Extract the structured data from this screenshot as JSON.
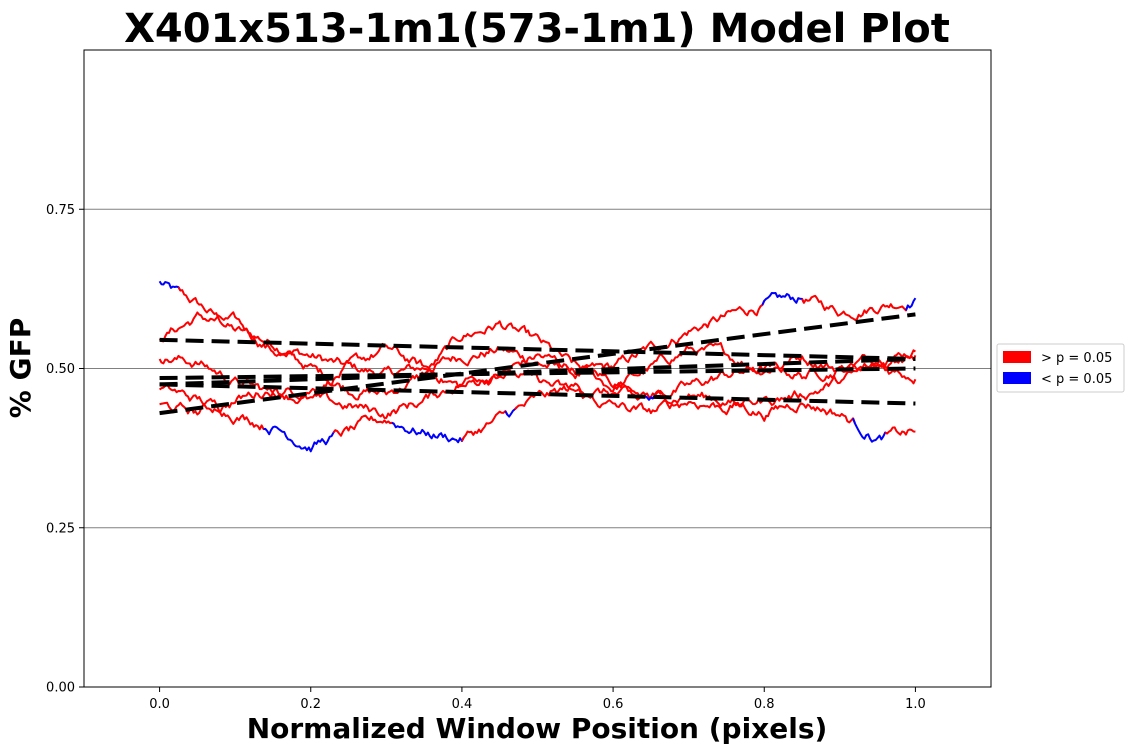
{
  "chart_data": {
    "type": "line",
    "title": "X401x513-1m1(573-1m1) Model Plot",
    "xlabel": "Normalized Window Position (pixels)",
    "ylabel": "% GFP",
    "xlim": [
      -0.1,
      1.1
    ],
    "ylim": [
      0.0,
      1.0
    ],
    "xticks": [
      0.0,
      0.2,
      0.4,
      0.6,
      0.8,
      1.0
    ],
    "xtick_labels": [
      "0.0",
      "0.2",
      "0.4",
      "0.6",
      "0.8",
      "1.0"
    ],
    "yticks": [
      0.0,
      0.25,
      0.5,
      0.75
    ],
    "ytick_labels": [
      "0.00",
      "0.25",
      "0.50",
      "0.75"
    ],
    "grid": "horizontal",
    "legend_position": "right",
    "legend": [
      {
        "label": "> p = 0.05",
        "color": "#ff0000"
      },
      {
        "label": "< p = 0.05",
        "color": "#0000ff"
      }
    ],
    "colors": {
      "significant_high": "#ff0000",
      "significant_low": "#0000ff",
      "model_fit": "#000000",
      "grid": "#808080"
    },
    "series": [
      {
        "x": [
          0.0,
          0.025,
          0.05,
          0.1,
          0.15,
          0.2,
          0.25,
          0.3,
          0.35,
          0.4,
          0.45,
          0.5,
          0.55,
          0.6,
          0.65,
          0.7,
          0.75,
          0.8,
          0.85,
          0.9,
          0.95,
          1.0
        ],
        "y": [
          0.635,
          0.615,
          0.6,
          0.56,
          0.54,
          0.52,
          0.5,
          0.49,
          0.5,
          0.52,
          0.53,
          0.51,
          0.49,
          0.5,
          0.53,
          0.56,
          0.58,
          0.6,
          0.61,
          0.59,
          0.6,
          0.61
        ],
        "blue_ranges": [
          [
            0.0,
            0.025
          ],
          [
            0.8,
            0.85
          ],
          [
            0.99,
            1.0
          ]
        ],
        "fit": [
          0.545,
          0.515
        ]
      },
      {
        "x": [
          0.0,
          0.05,
          0.1,
          0.15,
          0.2,
          0.25,
          0.3,
          0.35,
          0.4,
          0.45,
          0.5,
          0.55,
          0.6,
          0.65,
          0.7,
          0.75,
          0.8,
          0.85,
          0.9,
          0.95,
          1.0
        ],
        "y": [
          0.55,
          0.58,
          0.57,
          0.53,
          0.5,
          0.47,
          0.46,
          0.49,
          0.55,
          0.57,
          0.54,
          0.5,
          0.47,
          0.5,
          0.53,
          0.52,
          0.5,
          0.52,
          0.5,
          0.52,
          0.53
        ],
        "fit": [
          0.475,
          0.515
        ]
      },
      {
        "x": [
          0.0,
          0.05,
          0.1,
          0.15,
          0.2,
          0.25,
          0.3,
          0.35,
          0.4,
          0.45,
          0.5,
          0.55,
          0.6,
          0.65,
          0.7,
          0.75,
          0.8,
          0.85,
          0.9,
          0.95,
          1.0
        ],
        "y": [
          0.52,
          0.51,
          0.48,
          0.46,
          0.47,
          0.5,
          0.53,
          0.5,
          0.47,
          0.49,
          0.52,
          0.5,
          0.48,
          0.46,
          0.47,
          0.49,
          0.5,
          0.49,
          0.5,
          0.51,
          0.52
        ],
        "fit": [
          0.485,
          0.5
        ]
      },
      {
        "x": [
          0.0,
          0.05,
          0.1,
          0.15,
          0.2,
          0.25,
          0.3,
          0.35,
          0.4,
          0.45,
          0.5,
          0.55,
          0.6,
          0.65,
          0.7,
          0.75,
          0.8,
          0.85,
          0.9,
          0.95,
          1.0
        ],
        "y": [
          0.47,
          0.45,
          0.43,
          0.41,
          0.38,
          0.4,
          0.42,
          0.4,
          0.39,
          0.42,
          0.45,
          0.47,
          0.46,
          0.45,
          0.46,
          0.45,
          0.43,
          0.45,
          0.43,
          0.39,
          0.4
        ],
        "blue_ranges": [
          [
            0.14,
            0.23
          ],
          [
            0.31,
            0.4
          ],
          [
            0.46,
            0.47
          ],
          [
            0.645,
            0.655
          ],
          [
            0.92,
            0.96
          ]
        ],
        "fit": [
          0.475,
          0.445
        ]
      },
      {
        "x": [
          0.0,
          0.05,
          0.1,
          0.15,
          0.2,
          0.25,
          0.3,
          0.35,
          0.4,
          0.45,
          0.5,
          0.55,
          0.6,
          0.65,
          0.7,
          0.75,
          0.8,
          0.85,
          0.9,
          0.95,
          1.0
        ],
        "y": [
          0.44,
          0.43,
          0.45,
          0.47,
          0.45,
          0.44,
          0.43,
          0.45,
          0.48,
          0.5,
          0.48,
          0.46,
          0.44,
          0.43,
          0.45,
          0.44,
          0.45,
          0.46,
          0.48,
          0.5,
          0.49
        ],
        "fit": [
          0.43,
          0.585
        ]
      }
    ]
  }
}
